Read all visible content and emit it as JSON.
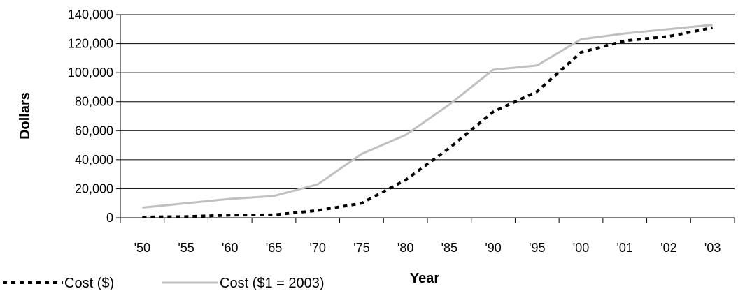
{
  "chart_data": {
    "type": "line",
    "categories": [
      "'50",
      "'55",
      "'60",
      "'65",
      "'70",
      "'75",
      "'80",
      "'85",
      "'90",
      "'95",
      "'00",
      "'01",
      "'02",
      "'03"
    ],
    "series": [
      {
        "name": "Cost ($)",
        "values": [
          500,
          800,
          1800,
          2000,
          5000,
          10000,
          26000,
          48000,
          73000,
          87000,
          114000,
          122000,
          125000,
          131000
        ],
        "color": "#000000",
        "style": "dotted"
      },
      {
        "name": "Cost ($1 = 2003)",
        "values": [
          7000,
          10000,
          13000,
          15000,
          23000,
          44000,
          57000,
          78000,
          102000,
          105000,
          123000,
          127000,
          130000,
          133000
        ],
        "color": "#c0c0c0",
        "style": "solid"
      }
    ],
    "title": "",
    "xlabel": "Year",
    "ylabel": "Dollars",
    "ylim": [
      0,
      140000
    ],
    "yticks": [
      0,
      20000,
      40000,
      60000,
      80000,
      100000,
      120000,
      140000
    ],
    "ytick_labels": [
      "0",
      "20,000",
      "40,000",
      "60,000",
      "80,000",
      "100,000",
      "120,000",
      "140,000"
    ],
    "grid": "horizontal",
    "legend_position": "bottom-left"
  }
}
